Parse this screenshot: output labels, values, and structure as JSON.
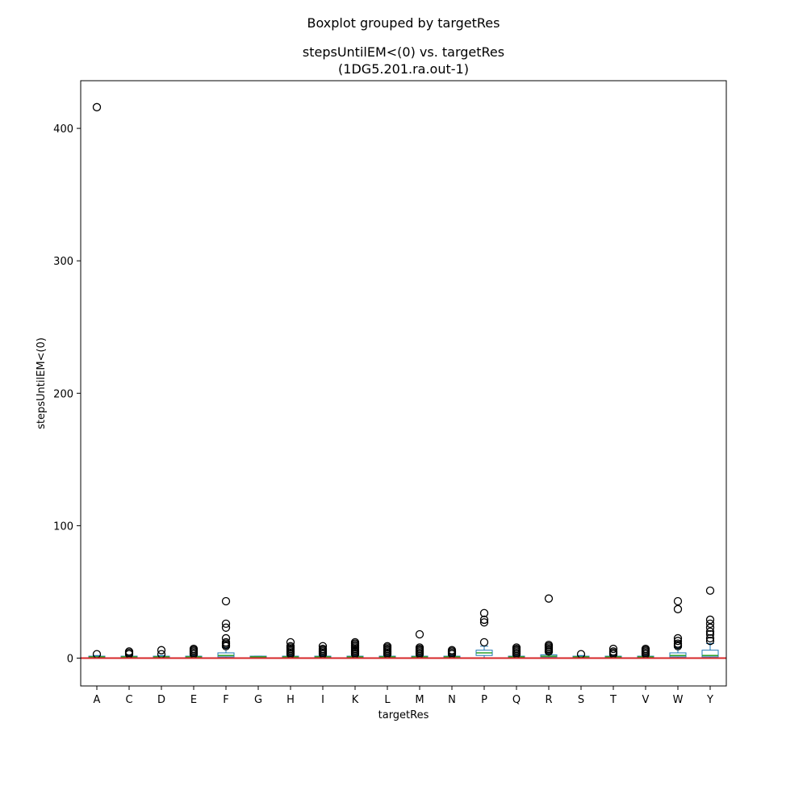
{
  "figure": {
    "suptitle": "Boxplot grouped by targetRes"
  },
  "chart_data": {
    "type": "boxplot",
    "title_line1": "stepsUntilEM<(0) vs. targetRes",
    "title_line2": "(1DG5.201.ra.out-1)",
    "xlabel": "targetRes",
    "ylabel": "stepsUntilEM<(0)",
    "ylim": [
      -21,
      436
    ],
    "yticks": [
      0,
      100,
      200,
      300,
      400
    ],
    "grid": false,
    "reference_line": {
      "y": 0,
      "color": "#d62728"
    },
    "colors": {
      "box": "#1f77b4",
      "median": "#2ca02c",
      "flier": "#000000",
      "whisker": "#1f77b4"
    },
    "categories": [
      "A",
      "C",
      "D",
      "E",
      "F",
      "G",
      "H",
      "I",
      "K",
      "L",
      "M",
      "N",
      "P",
      "Q",
      "R",
      "S",
      "T",
      "V",
      "W",
      "Y"
    ],
    "boxes": [
      {
        "q1": 0.5,
        "med": 1,
        "q3": 1.5,
        "whislo": 0,
        "whishi": 2,
        "fliers": [
          3,
          416
        ]
      },
      {
        "q1": 0.5,
        "med": 1,
        "q3": 1.5,
        "whislo": 0,
        "whishi": 2,
        "fliers": [
          3,
          4,
          5
        ]
      },
      {
        "q1": 0.5,
        "med": 1,
        "q3": 1.5,
        "whislo": 0,
        "whishi": 2,
        "fliers": [
          3,
          6
        ]
      },
      {
        "q1": 0.5,
        "med": 1,
        "q3": 1.5,
        "whislo": 0,
        "whishi": 2,
        "fliers": [
          3,
          4,
          5,
          6,
          7
        ]
      },
      {
        "q1": 1,
        "med": 2,
        "q3": 4,
        "whislo": 0,
        "whishi": 8,
        "fliers": [
          9,
          10,
          11,
          12,
          15,
          23,
          26,
          43
        ]
      },
      {
        "q1": 0.5,
        "med": 1,
        "q3": 1.5,
        "whislo": 0,
        "whishi": 1.5,
        "fliers": []
      },
      {
        "q1": 0.5,
        "med": 1,
        "q3": 1.5,
        "whislo": 0,
        "whishi": 2,
        "fliers": [
          3,
          4,
          5,
          6,
          7,
          8,
          9,
          12
        ]
      },
      {
        "q1": 0.5,
        "med": 1,
        "q3": 1.5,
        "whislo": 0,
        "whishi": 2,
        "fliers": [
          3,
          4,
          5,
          6,
          7,
          9
        ]
      },
      {
        "q1": 0.5,
        "med": 1,
        "q3": 1.5,
        "whislo": 0,
        "whishi": 2,
        "fliers": [
          3,
          4,
          5,
          6,
          7,
          8,
          9,
          10,
          11,
          12
        ]
      },
      {
        "q1": 0.5,
        "med": 1,
        "q3": 1.5,
        "whislo": 0,
        "whishi": 2,
        "fliers": [
          3,
          4,
          5,
          6,
          7,
          8,
          9
        ]
      },
      {
        "q1": 0.5,
        "med": 1,
        "q3": 1.5,
        "whislo": 0,
        "whishi": 2,
        "fliers": [
          3,
          4,
          5,
          6,
          7,
          8,
          18
        ]
      },
      {
        "q1": 0.5,
        "med": 1,
        "q3": 1.5,
        "whislo": 0,
        "whishi": 2,
        "fliers": [
          3,
          4,
          5,
          6
        ]
      },
      {
        "q1": 2,
        "med": 4,
        "q3": 6,
        "whislo": 0,
        "whishi": 9,
        "fliers": [
          12,
          27,
          29,
          34
        ]
      },
      {
        "q1": 0.5,
        "med": 1,
        "q3": 1.5,
        "whislo": 0,
        "whishi": 2,
        "fliers": [
          3,
          4,
          5,
          6,
          7,
          8
        ]
      },
      {
        "q1": 1,
        "med": 1.5,
        "q3": 2.5,
        "whislo": 0,
        "whishi": 4,
        "fliers": [
          5,
          6,
          7,
          8,
          9,
          10,
          45
        ]
      },
      {
        "q1": 0.5,
        "med": 1,
        "q3": 1.5,
        "whislo": 0,
        "whishi": 2,
        "fliers": [
          3
        ]
      },
      {
        "q1": 0.5,
        "med": 1,
        "q3": 1.5,
        "whislo": 0,
        "whishi": 2,
        "fliers": [
          3,
          4,
          5,
          7
        ]
      },
      {
        "q1": 0.5,
        "med": 1,
        "q3": 1.5,
        "whislo": 0,
        "whishi": 2,
        "fliers": [
          3,
          4,
          5,
          6,
          7
        ]
      },
      {
        "q1": 1,
        "med": 2,
        "q3": 4,
        "whislo": 0,
        "whishi": 8,
        "fliers": [
          9,
          10,
          11,
          13,
          15,
          37,
          43
        ]
      },
      {
        "q1": 1,
        "med": 2,
        "q3": 6,
        "whislo": 0,
        "whishi": 11,
        "fliers": [
          13,
          15,
          18,
          20,
          23,
          26,
          29,
          51
        ]
      }
    ]
  }
}
